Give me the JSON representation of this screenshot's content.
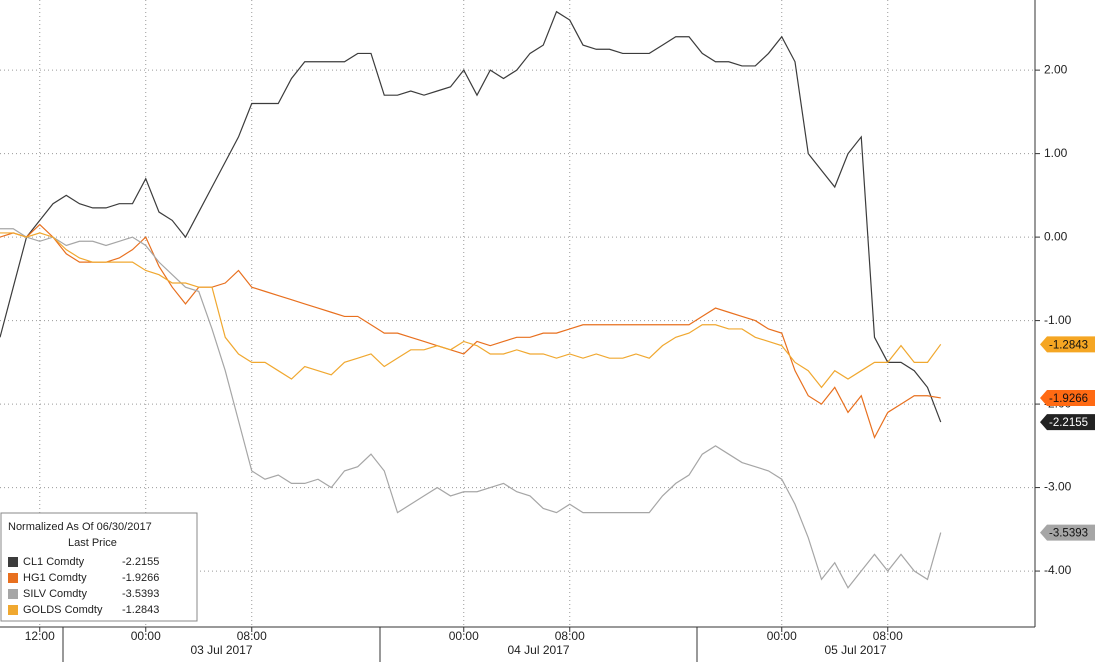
{
  "chart_data": {
    "type": "line",
    "categories": [
      null,
      null,
      null,
      "12:00",
      null,
      null,
      null,
      null,
      null,
      null,
      null,
      "00:00",
      null,
      null,
      null,
      null,
      null,
      null,
      null,
      "08:00",
      null,
      null,
      null,
      null,
      null,
      null,
      null,
      null,
      null,
      null,
      null,
      null,
      null,
      null,
      null,
      "00:00",
      null,
      null,
      null,
      null,
      null,
      null,
      null,
      "08:00",
      null,
      null,
      null,
      null,
      null,
      null,
      null,
      null,
      null,
      null,
      null,
      null,
      null,
      null,
      null,
      "00:00",
      null,
      null,
      null,
      null,
      null,
      null,
      null,
      "08:00",
      null,
      null,
      null,
      null
    ],
    "date_labels": [
      "03 Jul 2017",
      "04 Jul 2017",
      "05 Jul 2017"
    ],
    "legend_title": "Normalized As Of 06/30/2017",
    "legend_subtitle": "Last Price",
    "series": [
      {
        "name": "CL1 Comdty",
        "color": "#3c3c3c",
        "tag_color": "#222222",
        "last": -2.2155,
        "values": [
          -1.2,
          -0.6,
          0.0,
          0.2,
          0.4,
          0.5,
          0.4,
          0.35,
          0.35,
          0.4,
          0.4,
          0.7,
          0.3,
          0.2,
          0.0,
          0.3,
          0.6,
          0.9,
          1.2,
          1.6,
          1.6,
          1.6,
          1.9,
          2.1,
          2.1,
          2.1,
          2.1,
          2.2,
          2.2,
          1.7,
          1.7,
          1.75,
          1.7,
          1.75,
          1.8,
          2.0,
          1.7,
          2.0,
          1.9,
          2.0,
          2.2,
          2.3,
          2.7,
          2.6,
          2.3,
          2.25,
          2.25,
          2.2,
          2.2,
          2.2,
          2.3,
          2.4,
          2.4,
          2.2,
          2.1,
          2.1,
          2.05,
          2.05,
          2.2,
          2.4,
          2.1,
          1.0,
          0.8,
          0.6,
          1.0,
          1.2,
          -1.2,
          -1.5,
          -1.5,
          -1.6,
          -1.8,
          -2.2155
        ]
      },
      {
        "name": "HG1 Comdty",
        "color": "#e8701f",
        "tag_color": "#ff6a13",
        "last": -1.9266,
        "values": [
          0.0,
          0.05,
          0.0,
          0.15,
          0.0,
          -0.2,
          -0.3,
          -0.3,
          -0.3,
          -0.25,
          -0.15,
          0.0,
          -0.35,
          -0.6,
          -0.8,
          -0.6,
          -0.6,
          -0.55,
          -0.4,
          -0.6,
          -0.65,
          -0.7,
          -0.75,
          -0.8,
          -0.85,
          -0.9,
          -0.95,
          -0.95,
          -1.05,
          -1.15,
          -1.15,
          -1.2,
          -1.25,
          -1.3,
          -1.35,
          -1.4,
          -1.25,
          -1.3,
          -1.25,
          -1.2,
          -1.2,
          -1.15,
          -1.15,
          -1.1,
          -1.05,
          -1.05,
          -1.05,
          -1.05,
          -1.05,
          -1.05,
          -1.05,
          -1.05,
          -1.05,
          -0.95,
          -0.85,
          -0.9,
          -0.95,
          -1.0,
          -1.1,
          -1.15,
          -1.6,
          -1.9,
          -2.0,
          -1.8,
          -2.1,
          -1.9,
          -2.4,
          -2.1,
          -2.0,
          -1.9,
          -1.9,
          -1.9266
        ]
      },
      {
        "name": "SILV Comdty",
        "color": "#a6a6a6",
        "tag_color": "#a6a6a6",
        "last": -3.5393,
        "values": [
          0.1,
          0.1,
          0.0,
          -0.05,
          0.0,
          -0.1,
          -0.05,
          -0.05,
          -0.1,
          -0.05,
          0.0,
          -0.1,
          -0.3,
          -0.45,
          -0.6,
          -0.65,
          -1.1,
          -1.6,
          -2.2,
          -2.8,
          -2.9,
          -2.85,
          -2.95,
          -2.95,
          -2.9,
          -3.0,
          -2.8,
          -2.75,
          -2.6,
          -2.8,
          -3.3,
          -3.2,
          -3.1,
          -3.0,
          -3.1,
          -3.05,
          -3.05,
          -3.0,
          -2.95,
          -3.05,
          -3.1,
          -3.25,
          -3.3,
          -3.2,
          -3.3,
          -3.3,
          -3.3,
          -3.3,
          -3.3,
          -3.3,
          -3.1,
          -2.95,
          -2.85,
          -2.6,
          -2.5,
          -2.6,
          -2.7,
          -2.75,
          -2.8,
          -2.9,
          -3.2,
          -3.6,
          -4.1,
          -3.9,
          -4.2,
          -4.0,
          -3.8,
          -4.0,
          -3.8,
          -4.0,
          -4.1,
          -3.5393
        ]
      },
      {
        "name": "GOLDS Comdty",
        "color": "#f0a830",
        "tag_color": "#f5a623",
        "last": -1.2843,
        "values": [
          0.05,
          0.05,
          0.0,
          0.05,
          0.0,
          -0.15,
          -0.25,
          -0.3,
          -0.3,
          -0.3,
          -0.3,
          -0.4,
          -0.45,
          -0.55,
          -0.55,
          -0.6,
          -0.6,
          -1.2,
          -1.4,
          -1.5,
          -1.5,
          -1.6,
          -1.7,
          -1.55,
          -1.6,
          -1.65,
          -1.5,
          -1.45,
          -1.4,
          -1.55,
          -1.45,
          -1.35,
          -1.35,
          -1.3,
          -1.35,
          -1.25,
          -1.3,
          -1.4,
          -1.4,
          -1.35,
          -1.4,
          -1.4,
          -1.45,
          -1.4,
          -1.45,
          -1.4,
          -1.45,
          -1.45,
          -1.4,
          -1.45,
          -1.3,
          -1.2,
          -1.15,
          -1.05,
          -1.05,
          -1.1,
          -1.1,
          -1.2,
          -1.25,
          -1.3,
          -1.5,
          -1.6,
          -1.8,
          -1.6,
          -1.7,
          -1.6,
          -1.5,
          -1.5,
          -1.3,
          -1.5,
          -1.5,
          -1.2843
        ]
      }
    ],
    "ylim": [
      -4.67,
      2.84
    ],
    "yticks": [
      {
        "value": 2,
        "label": "2.00"
      },
      {
        "value": 1,
        "label": "1.00"
      },
      {
        "value": 0,
        "label": "0.00"
      },
      {
        "value": -1,
        "label": "-1.00"
      },
      {
        "value": -2,
        "label": "-2.00"
      },
      {
        "value": -3,
        "label": "-3.00"
      },
      {
        "value": -4,
        "label": "-4.00"
      }
    ],
    "grid": true
  }
}
